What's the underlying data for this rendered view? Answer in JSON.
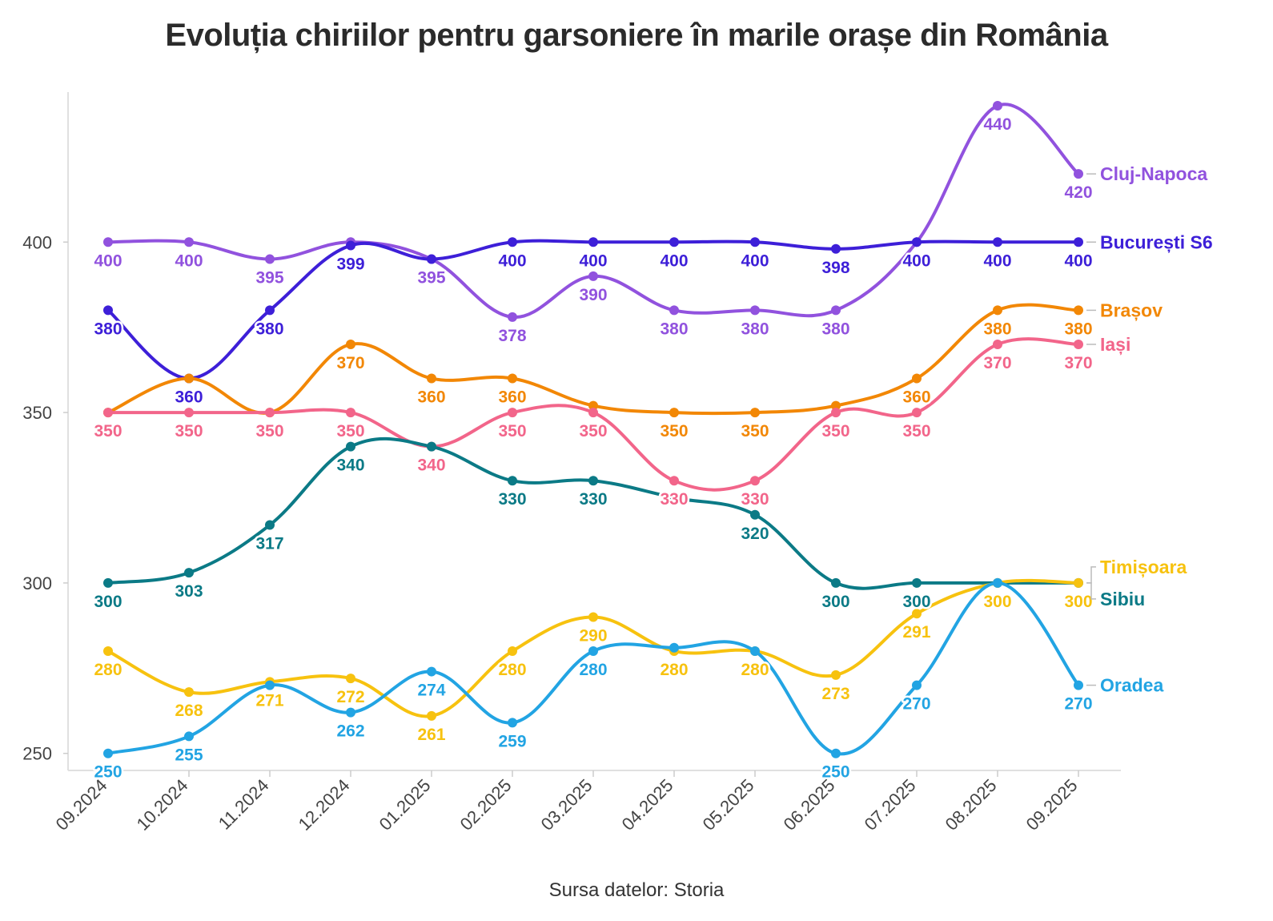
{
  "chart_data": {
    "type": "line",
    "title": "Evoluția chiriilor pentru garsoniere în marile orașe din România",
    "source": "Sursa datelor: Storia",
    "xlabel": "",
    "ylabel": "",
    "x": [
      "09.2024",
      "10.2024",
      "11.2024",
      "12.2024",
      "01.2025",
      "02.2025",
      "03.2025",
      "04.2025",
      "05.2025",
      "06.2025",
      "07.2025",
      "08.2025",
      "09.2025"
    ],
    "ylim": [
      245,
      444
    ],
    "yticks": [
      250,
      300,
      350,
      400
    ],
    "grid": false,
    "legend": "direct labels at line ends",
    "series": [
      {
        "name": "Cluj-Napoca",
        "color": "#9152de",
        "values": [
          400,
          400,
          395,
          400,
          395,
          378,
          390,
          380,
          380,
          380,
          400,
          440,
          420
        ]
      },
      {
        "name": "București S6",
        "color": "#3d1fd8",
        "values": [
          380,
          360,
          380,
          399,
          395,
          400,
          400,
          400,
          400,
          398,
          400,
          400,
          400
        ]
      },
      {
        "name": "Brașov",
        "color": "#f28705",
        "values": [
          350,
          360,
          350,
          370,
          360,
          360,
          352,
          350,
          350,
          352,
          360,
          380,
          380
        ]
      },
      {
        "name": "Iași",
        "color": "#f2658a",
        "values": [
          350,
          350,
          350,
          350,
          340,
          350,
          350,
          330,
          330,
          350,
          350,
          370,
          370
        ]
      },
      {
        "name": "Sibiu",
        "color": "#0b7a86",
        "values": [
          300,
          303,
          317,
          340,
          340,
          330,
          330,
          325,
          320,
          300,
          300,
          300,
          300
        ]
      },
      {
        "name": "Timișoara",
        "color": "#f7c20f",
        "values": [
          280,
          268,
          271,
          272,
          261,
          280,
          290,
          280,
          280,
          273,
          291,
          300,
          300
        ]
      },
      {
        "name": "Oradea",
        "color": "#22a4e3",
        "values": [
          250,
          255,
          270,
          262,
          274,
          259,
          280,
          281,
          280,
          250,
          270,
          300,
          270
        ]
      }
    ],
    "data_labels": {
      "Cluj-Napoca": [
        "400",
        "400",
        "395",
        "",
        "395",
        "378",
        "390",
        "380",
        "380",
        "380",
        "",
        "440",
        "420"
      ],
      "București S6": [
        "380",
        "360",
        "380",
        "399",
        "",
        "400",
        "400",
        "400",
        "400",
        "398",
        "400",
        "400",
        "400"
      ],
      "Brașov": [
        "",
        "",
        "",
        "370",
        "360",
        "360",
        "",
        "350",
        "350",
        "",
        "360",
        "380",
        "380"
      ],
      "Iași": [
        "350",
        "350",
        "350",
        "350",
        "340",
        "350",
        "350",
        "330",
        "330",
        "350",
        "350",
        "370",
        "370"
      ],
      "Sibiu": [
        "300",
        "303",
        "317",
        "340",
        "",
        "330",
        "330",
        "",
        "320",
        "300",
        "300",
        "",
        ""
      ],
      "Timișoara": [
        "280",
        "268",
        "271",
        "272",
        "261",
        "280",
        "290",
        "280",
        "280",
        "273",
        "291",
        "300",
        "300"
      ],
      "Oradea": [
        "250",
        "255",
        "",
        "262",
        "274",
        "259",
        "280",
        "",
        "",
        "250",
        "270",
        "",
        "270"
      ]
    }
  }
}
